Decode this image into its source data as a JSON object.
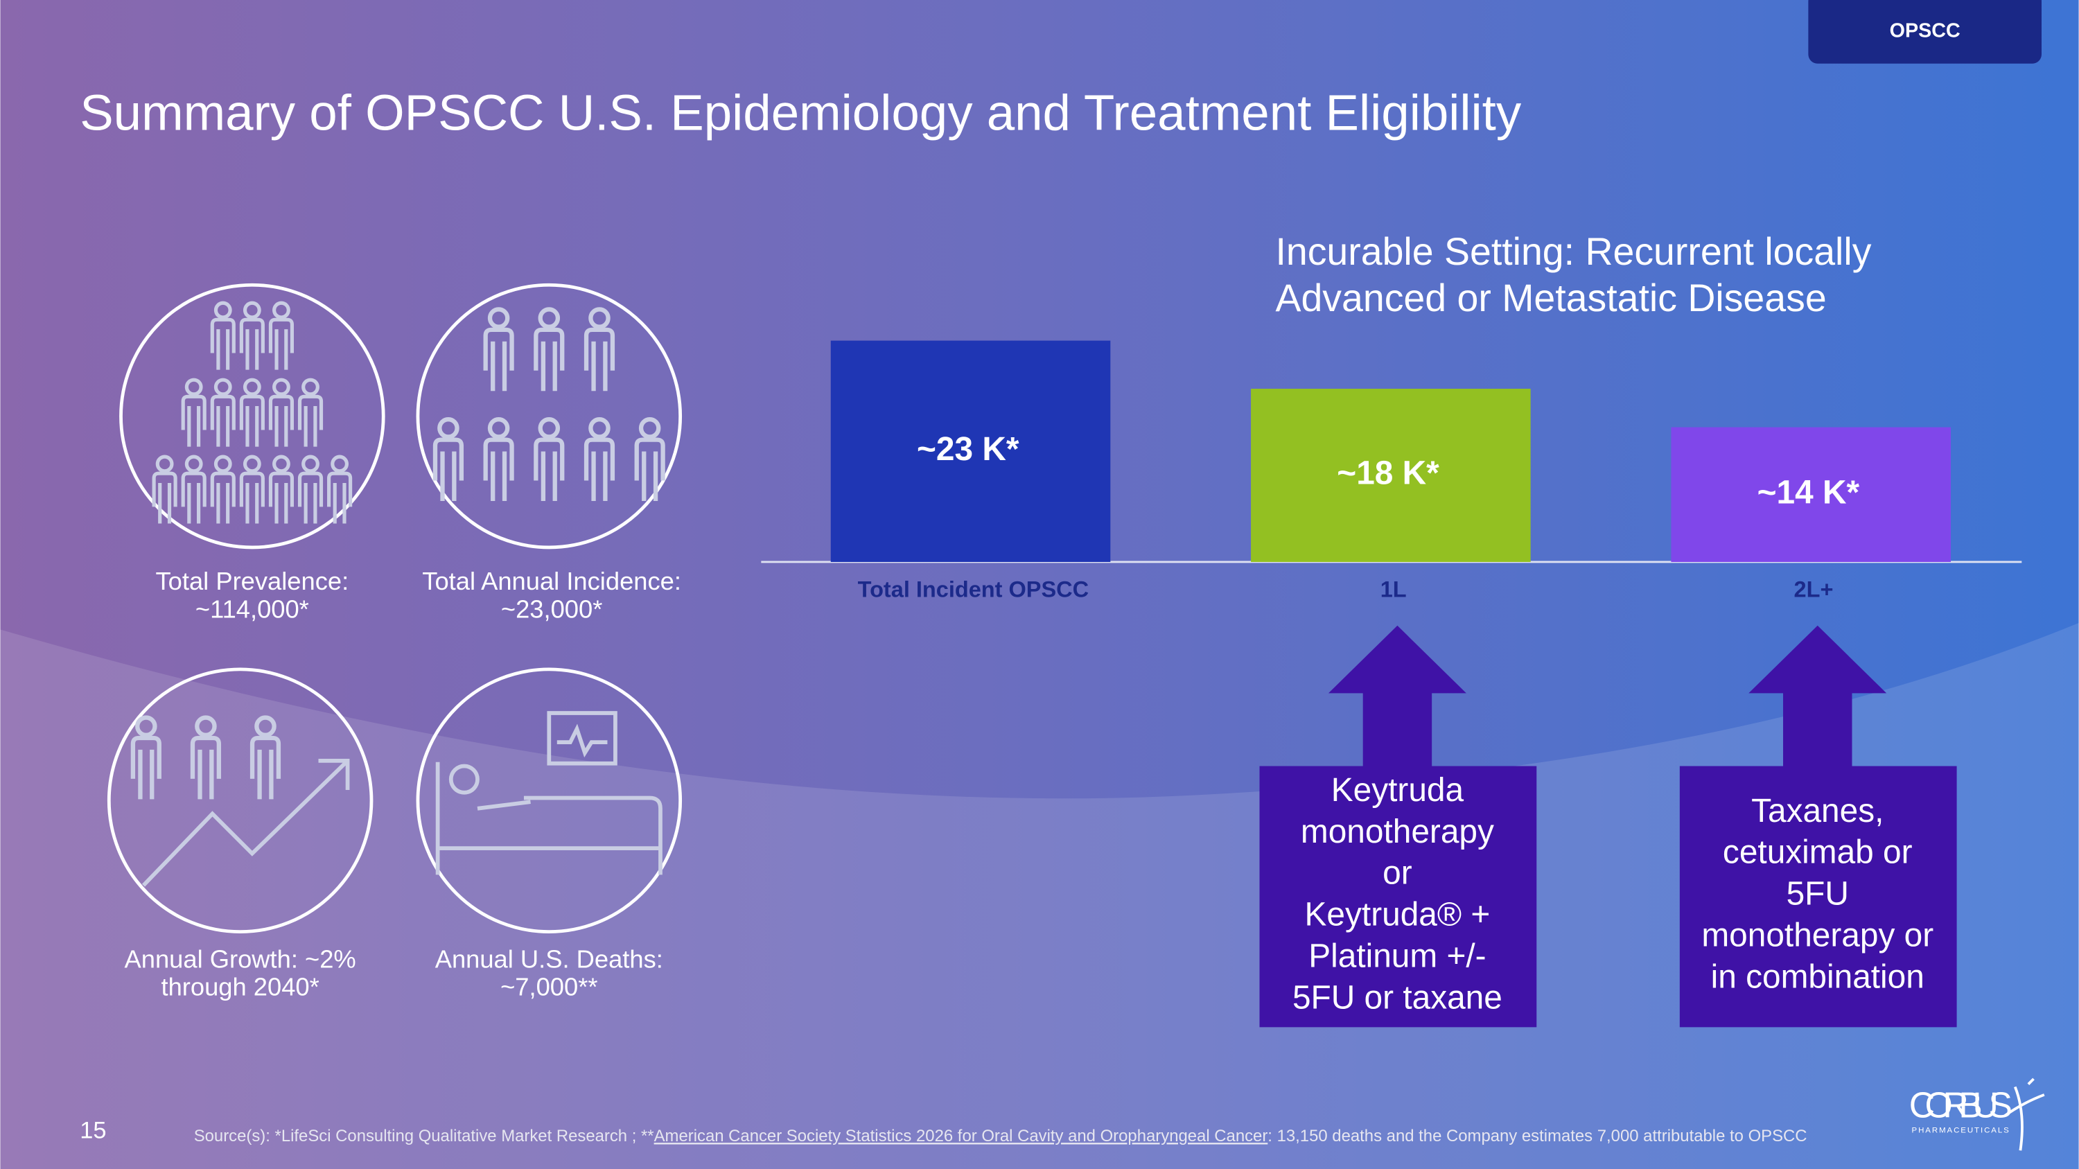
{
  "header": {
    "tag": "OPSCC",
    "title": "Summary of OPSCC U.S. Epidemiology and Treatment Eligibility"
  },
  "stats": [
    {
      "label": "Total Prevalence:",
      "value": "~114,000*"
    },
    {
      "label": "Total Annual Incidence:",
      "value": "~23,000*"
    },
    {
      "label": "Annual Growth: ~2%",
      "value": "through 2040*"
    },
    {
      "label": "Annual U.S. Deaths:",
      "value": "~7,000**"
    }
  ],
  "chart_data": {
    "type": "bar",
    "title": [
      "Incurable Setting: Recurrent locally",
      "Advanced or Metastatic Disease"
    ],
    "categories": [
      "Total Incident OPSCC",
      "1L",
      "2L+"
    ],
    "values": [
      23,
      18,
      14
    ],
    "value_labels": [
      "~23 K*",
      "~18 K*",
      "~14 K*"
    ],
    "colors": [
      "#1f36b4",
      "#93c022",
      "#8047ea"
    ]
  },
  "callouts": [
    {
      "lines": [
        "Keytruda",
        "monotherapy",
        "or",
        "Keytruda® +",
        "Platinum +/-",
        "5FU or taxane"
      ]
    },
    {
      "lines": [
        "Taxanes,",
        "cetuximab or",
        "5FU",
        "monotherapy or",
        "in combination"
      ]
    }
  ],
  "footer": {
    "page": "15",
    "source_prefix": "Source(s): *LifeSci Consulting Qualitative Market Research ; **",
    "source_link": "American Cancer Society Statistics 2026 for Oral Cavity and Oropharyngeal Cancer",
    "source_suffix": ": 13,150 deaths and the Company estimates 7,000 attributable to OPSCC"
  },
  "logo": {
    "name": "CORBUS",
    "sub": "PHARMACEUTICALS"
  }
}
